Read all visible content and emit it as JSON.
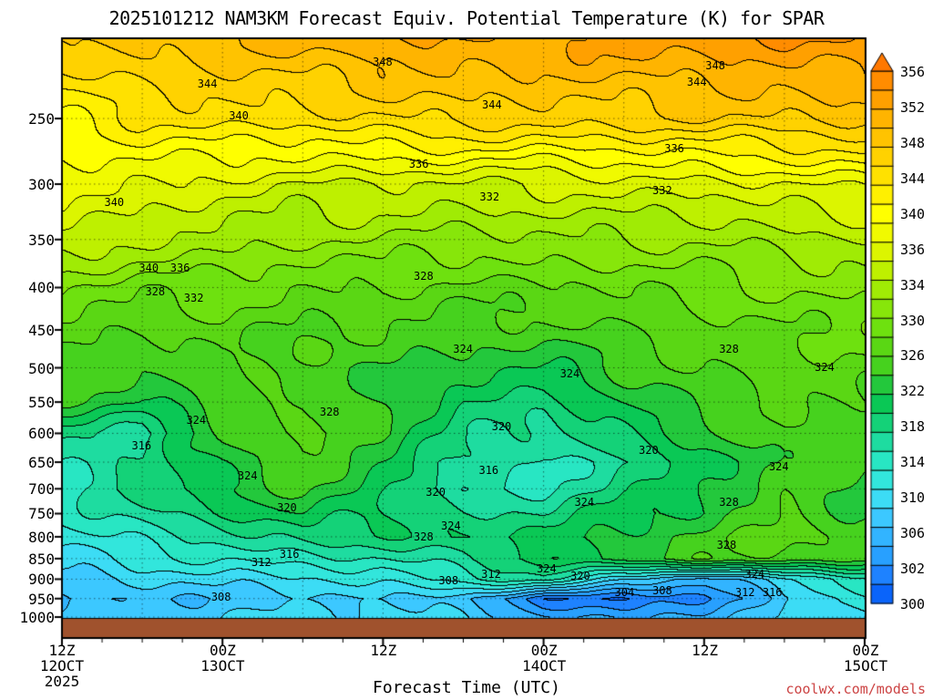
{
  "credit": {
    "text": "coolwx.com/models",
    "color": "#cc4444"
  },
  "axes": {
    "x": {
      "title": "Forecast Time (UTC)",
      "ticks": [
        {
          "z": "12Z",
          "date": "12OCT",
          "year": "2025"
        },
        {
          "z": "00Z",
          "date": "13OCT",
          "year": ""
        },
        {
          "z": "12Z",
          "date": "",
          "year": ""
        },
        {
          "z": "00Z",
          "date": "14OCT",
          "year": ""
        },
        {
          "z": "12Z",
          "date": "",
          "year": ""
        },
        {
          "z": "00Z",
          "date": "15OCT",
          "year": ""
        }
      ]
    },
    "y": {
      "ticks": [
        "250",
        "300",
        "350",
        "400",
        "450",
        "500",
        "550",
        "600",
        "650",
        "700",
        "750",
        "800",
        "850",
        "900",
        "950",
        "1000"
      ]
    }
  },
  "colorbar": {
    "labels": [
      "356",
      "352",
      "348",
      "344",
      "340",
      "336",
      "334",
      "330",
      "326",
      "322",
      "318",
      "314",
      "310",
      "306",
      "302",
      "300"
    ]
  },
  "contour_labels": [
    {
      "t": "348",
      "fx": 0.399,
      "fy": 0.041
    },
    {
      "t": "348",
      "fx": 0.813,
      "fy": 0.047
    },
    {
      "t": "344",
      "fx": 0.181,
      "fy": 0.079
    },
    {
      "t": "344",
      "fx": 0.535,
      "fy": 0.115
    },
    {
      "t": "344",
      "fx": 0.79,
      "fy": 0.075
    },
    {
      "t": "340",
      "fx": 0.22,
      "fy": 0.134
    },
    {
      "t": "340",
      "fx": 0.065,
      "fy": 0.283
    },
    {
      "t": "336",
      "fx": 0.444,
      "fy": 0.217
    },
    {
      "t": "336",
      "fx": 0.762,
      "fy": 0.19
    },
    {
      "t": "332",
      "fx": 0.532,
      "fy": 0.274
    },
    {
      "t": "332",
      "fx": 0.747,
      "fy": 0.263
    },
    {
      "t": "340",
      "fx": 0.108,
      "fy": 0.396
    },
    {
      "t": "336",
      "fx": 0.147,
      "fy": 0.396
    },
    {
      "t": "328",
      "fx": 0.116,
      "fy": 0.437
    },
    {
      "t": "332",
      "fx": 0.164,
      "fy": 0.448
    },
    {
      "t": "328",
      "fx": 0.45,
      "fy": 0.41
    },
    {
      "t": "328",
      "fx": 0.83,
      "fy": 0.536
    },
    {
      "t": "324",
      "fx": 0.949,
      "fy": 0.568
    },
    {
      "t": "324",
      "fx": 0.499,
      "fy": 0.536
    },
    {
      "t": "324",
      "fx": 0.632,
      "fy": 0.579
    },
    {
      "t": "324",
      "fx": 0.167,
      "fy": 0.659
    },
    {
      "t": "328",
      "fx": 0.333,
      "fy": 0.645
    },
    {
      "t": "320",
      "fx": 0.547,
      "fy": 0.67
    },
    {
      "t": "316",
      "fx": 0.099,
      "fy": 0.703
    },
    {
      "t": "320",
      "fx": 0.73,
      "fy": 0.711
    },
    {
      "t": "324",
      "fx": 0.231,
      "fy": 0.755
    },
    {
      "t": "316",
      "fx": 0.531,
      "fy": 0.745
    },
    {
      "t": "324",
      "fx": 0.892,
      "fy": 0.739
    },
    {
      "t": "320",
      "fx": 0.28,
      "fy": 0.81
    },
    {
      "t": "320",
      "fx": 0.465,
      "fy": 0.783
    },
    {
      "t": "324",
      "fx": 0.65,
      "fy": 0.8
    },
    {
      "t": "328",
      "fx": 0.83,
      "fy": 0.8
    },
    {
      "t": "328",
      "fx": 0.45,
      "fy": 0.86
    },
    {
      "t": "324",
      "fx": 0.484,
      "fy": 0.841
    },
    {
      "t": "312",
      "fx": 0.248,
      "fy": 0.904
    },
    {
      "t": "316",
      "fx": 0.283,
      "fy": 0.89
    },
    {
      "t": "328",
      "fx": 0.827,
      "fy": 0.874
    },
    {
      "t": "308",
      "fx": 0.481,
      "fy": 0.935
    },
    {
      "t": "312",
      "fx": 0.534,
      "fy": 0.924
    },
    {
      "t": "324",
      "fx": 0.603,
      "fy": 0.915
    },
    {
      "t": "320",
      "fx": 0.645,
      "fy": 0.928
    },
    {
      "t": "304",
      "fx": 0.7,
      "fy": 0.956
    },
    {
      "t": "308",
      "fx": 0.747,
      "fy": 0.953
    },
    {
      "t": "324",
      "fx": 0.862,
      "fy": 0.924
    },
    {
      "t": "312",
      "fx": 0.85,
      "fy": 0.956
    },
    {
      "t": "316",
      "fx": 0.884,
      "fy": 0.956
    },
    {
      "t": "308",
      "fx": 0.198,
      "fy": 0.964
    }
  ],
  "chart_data": {
    "type": "heatmap",
    "title": "2025101212 NAM3KM Forecast Equiv. Potential Temperature (K) for SPAR",
    "xlabel": "Forecast Time (UTC)",
    "ylabel": "",
    "units": "K",
    "x_hours": [
      0,
      6,
      12,
      18,
      24,
      30,
      36,
      42,
      48,
      54,
      60
    ],
    "pressures": [
      200,
      250,
      300,
      350,
      400,
      450,
      500,
      550,
      600,
      650,
      700,
      750,
      800,
      850,
      900,
      950,
      1000
    ],
    "values": [
      [
        348,
        349,
        350,
        351,
        352,
        352,
        352,
        353,
        353,
        354,
        354
      ],
      [
        342,
        344,
        345,
        345,
        346,
        347,
        347,
        347,
        348,
        348,
        349
      ],
      [
        339,
        338,
        337,
        336,
        336,
        336,
        336,
        337,
        337,
        338,
        339
      ],
      [
        336,
        334,
        333,
        332,
        332,
        331,
        332,
        332,
        332,
        333,
        334
      ],
      [
        330,
        329,
        329,
        328,
        328,
        327,
        328,
        328,
        329,
        330,
        331
      ],
      [
        327,
        326,
        327,
        326,
        326,
        325,
        325,
        326,
        327,
        328,
        329
      ],
      [
        326,
        324,
        326,
        325,
        324,
        323,
        322,
        324,
        326,
        327,
        327
      ],
      [
        324,
        322,
        325,
        326,
        324,
        320,
        319,
        322,
        325,
        326,
        326
      ],
      [
        319,
        317,
        324,
        327,
        324,
        319,
        317,
        320,
        323,
        326,
        325
      ],
      [
        316,
        318,
        323,
        326,
        322,
        317,
        315,
        318,
        321,
        325,
        324
      ],
      [
        315,
        319,
        322,
        324,
        321,
        316,
        316,
        319,
        322,
        325,
        323
      ],
      [
        314,
        317,
        320,
        322,
        320,
        318,
        318,
        321,
        323,
        326,
        324
      ],
      [
        313,
        315,
        317,
        319,
        319,
        320,
        321,
        323,
        325,
        327,
        325
      ],
      [
        311,
        313,
        314,
        315,
        316,
        318,
        321,
        323,
        325,
        326,
        325
      ],
      [
        309,
        310,
        311,
        312,
        313,
        315,
        317,
        310,
        307,
        312,
        315
      ],
      [
        308,
        308,
        309,
        309,
        310,
        308,
        303,
        302,
        304,
        309,
        313
      ],
      [
        309,
        309,
        310,
        310,
        311,
        310,
        307,
        305,
        307,
        310,
        312
      ]
    ],
    "band_min": 298,
    "band_step": 2,
    "contour_interval": 2,
    "label_interval": 4,
    "contour_color": "#000000",
    "underground_color": "#A0522D",
    "palette": [
      "#0A50F0",
      "#0A64FA",
      "#1E82FF",
      "#28A0FF",
      "#32B4FF",
      "#3CC8FF",
      "#3CDCF5",
      "#32E6DC",
      "#28E6C3",
      "#1EDCA0",
      "#14D278",
      "#0AC855",
      "#23C83C",
      "#46D21E",
      "#5AD714",
      "#6EE10F",
      "#87E60A",
      "#A0EB05",
      "#BEF000",
      "#DCF500",
      "#F0FA00",
      "#FFFF00",
      "#FFF000",
      "#FFE100",
      "#FFD200",
      "#FFC300",
      "#FFB400",
      "#FFA000",
      "#FF8C00",
      "#FF7800"
    ]
  }
}
